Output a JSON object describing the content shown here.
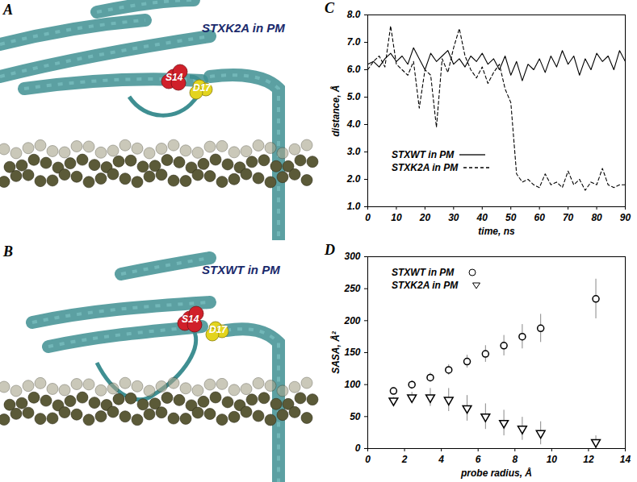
{
  "images": [
    {
      "panel": "A",
      "title": "STXK2A in PM",
      "residues": [
        "S14",
        "D17"
      ]
    },
    {
      "panel": "B",
      "title": "STXWT in PM",
      "residues": [
        "S14",
        "D17"
      ]
    }
  ],
  "chart_data": [
    {
      "panel": "C",
      "type": "line",
      "x_label": "time, ns",
      "y_label": "distance, Å",
      "x": [
        0,
        2,
        4,
        6,
        8,
        10,
        12,
        14,
        16,
        18,
        20,
        22,
        24,
        26,
        28,
        30,
        32,
        34,
        36,
        38,
        40,
        42,
        44,
        46,
        48,
        50,
        52,
        54,
        56,
        58,
        60,
        62,
        64,
        66,
        68,
        70,
        72,
        74,
        76,
        78,
        80,
        82,
        84,
        86,
        88,
        90
      ],
      "series": [
        {
          "name": "STXWT in PM",
          "color": "#000000",
          "line_style": "solid",
          "values": [
            6.2,
            6.3,
            6.1,
            6.4,
            6.6,
            6.3,
            6.5,
            6.2,
            6.8,
            6.4,
            6.0,
            6.6,
            6.3,
            6.5,
            6.7,
            6.2,
            6.4,
            6.1,
            6.5,
            6.3,
            6.6,
            6.2,
            6.4,
            6.0,
            6.5,
            5.8,
            6.3,
            5.6,
            6.2,
            6.0,
            6.4,
            5.9,
            6.5,
            6.1,
            6.7,
            6.2,
            6.5,
            5.8,
            6.4,
            6.0,
            6.6,
            6.3,
            6.5,
            6.0,
            6.7,
            6.3
          ]
        },
        {
          "name": "STXK2A in PM",
          "color": "#000000",
          "line_style": "dashed",
          "values": [
            6.0,
            6.3,
            6.5,
            6.1,
            7.6,
            6.2,
            6.0,
            5.8,
            6.3,
            4.6,
            6.0,
            5.8,
            3.9,
            6.4,
            5.9,
            6.8,
            7.5,
            6.5,
            6.0,
            5.7,
            6.1,
            5.5,
            5.9,
            6.2,
            5.3,
            4.8,
            2.2,
            1.9,
            2.0,
            1.8,
            1.7,
            2.2,
            1.8,
            1.9,
            1.7,
            2.3,
            1.8,
            2.0,
            1.6,
            1.9,
            1.8,
            2.4,
            1.8,
            1.7,
            1.8,
            1.8
          ]
        }
      ],
      "xlim": [
        0,
        90
      ],
      "xticks": [
        0,
        10,
        20,
        30,
        40,
        50,
        60,
        70,
        80,
        90
      ],
      "ylim": [
        1,
        8
      ],
      "yticks": [
        1,
        2,
        3,
        4,
        5,
        6,
        7,
        8
      ],
      "legend": "lower left"
    },
    {
      "panel": "D",
      "type": "scatter",
      "x_label": "probe radius, Å",
      "y_label": "SASA, Å²",
      "x": [
        1.4,
        2.4,
        3.4,
        4.4,
        5.4,
        6.4,
        7.4,
        8.4,
        9.4,
        12.4
      ],
      "series": [
        {
          "name": "STXWT in PM",
          "color": "#000000",
          "marker": "circle",
          "values": [
            90,
            100,
            111,
            123,
            136,
            148,
            161,
            175,
            188,
            234
          ],
          "errors": [
            5,
            6,
            7,
            8,
            10,
            13,
            16,
            19,
            22,
            31
          ]
        },
        {
          "name": "STXK2A in PM",
          "color": "#000000",
          "marker": "triangle_down",
          "values": [
            75,
            80,
            80,
            76,
            63,
            50,
            40,
            31,
            24,
            10
          ],
          "errors": [
            5,
            8,
            14,
            18,
            20,
            20,
            20,
            18,
            18,
            10
          ]
        }
      ],
      "xlim": [
        0,
        14
      ],
      "xticks": [
        0,
        2,
        4,
        6,
        8,
        10,
        12,
        14
      ],
      "ylim": [
        0,
        300
      ],
      "yticks": [
        0,
        50,
        100,
        150,
        200,
        250,
        300
      ],
      "legend": "upper left"
    }
  ]
}
